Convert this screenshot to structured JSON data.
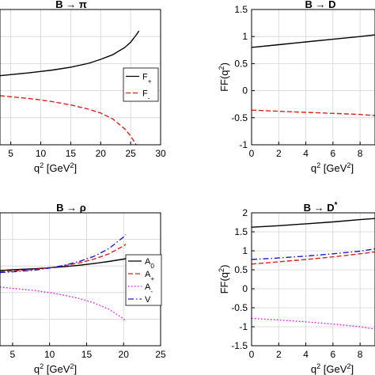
{
  "chart_data": [
    {
      "id": "b-pi",
      "type": "line",
      "title": "B → π",
      "xlabel": "q² [GeV²]",
      "ylabel": "",
      "xlim": [
        3.2,
        30
      ],
      "ylim": [
        -1.9,
        1.9
      ],
      "xticks": [
        5,
        10,
        15,
        20,
        25,
        30
      ],
      "xtick_labels": [
        "5",
        "10",
        "15",
        "20",
        "25",
        "30"
      ],
      "yticks": [],
      "grid": true,
      "legend": "center-right",
      "series": [
        {
          "name": "F₊",
          "color": "#000000",
          "dash": "solid",
          "x": [
            3.2,
            5,
            8,
            10,
            12,
            15,
            18,
            20,
            22,
            24,
            25,
            26,
            26.4
          ],
          "y": [
            0.04,
            0.07,
            0.12,
            0.16,
            0.2,
            0.28,
            0.39,
            0.5,
            0.63,
            0.83,
            0.98,
            1.2,
            1.3
          ]
        },
        {
          "name": "F₋",
          "color": "#e0201b",
          "dash": "dashed",
          "x": [
            3.2,
            5,
            8,
            10,
            12,
            15,
            18,
            20,
            22,
            24,
            25,
            26,
            26.4
          ],
          "y": [
            -0.52,
            -0.55,
            -0.6,
            -0.64,
            -0.69,
            -0.78,
            -0.9,
            -1.01,
            -1.17,
            -1.45,
            -1.65,
            -1.92,
            -2.05
          ]
        }
      ]
    },
    {
      "id": "b-d",
      "type": "line",
      "title": "B → D",
      "xlabel": "q² [GeV²]",
      "ylabel": "FF(q²)",
      "xlim": [
        0,
        9.1
      ],
      "ylim": [
        -1,
        1.5
      ],
      "xticks": [
        0,
        2,
        4,
        6,
        8
      ],
      "xtick_labels": [
        "0",
        "2",
        "4",
        "6",
        "8"
      ],
      "yticks": [
        -1,
        -0.5,
        0,
        0.5,
        1,
        1.5
      ],
      "ytick_labels": [
        "-1",
        "-0.5",
        "0",
        "0.5",
        "1",
        "1.5"
      ],
      "grid": true,
      "series": [
        {
          "name": "",
          "color": "#000000",
          "dash": "solid",
          "x": [
            0,
            2,
            4,
            6,
            8,
            9.1
          ],
          "y": [
            0.8,
            0.85,
            0.9,
            0.95,
            1.0,
            1.03
          ]
        },
        {
          "name": "",
          "color": "#e0201b",
          "dash": "dashed",
          "x": [
            0,
            2,
            4,
            6,
            8,
            9.1
          ],
          "y": [
            -0.36,
            -0.38,
            -0.4,
            -0.42,
            -0.44,
            -0.46
          ]
        }
      ]
    },
    {
      "id": "b-rho",
      "type": "line",
      "title": "B → ρ",
      "xlabel": "q² [GeV²]",
      "ylabel": "",
      "xlim": [
        3.3,
        25
      ],
      "ylim": [
        -1.9,
        1.95
      ],
      "xticks": [
        5,
        10,
        15,
        20,
        25
      ],
      "xtick_labels": [
        "5",
        "10",
        "15",
        "20",
        "25"
      ],
      "yticks": [],
      "grid": true,
      "legend": "right",
      "series": [
        {
          "name": "A₀",
          "color": "#000000",
          "dash": "solid",
          "x": [
            3.3,
            5,
            8,
            10,
            12,
            14,
            16,
            18,
            20,
            20.3
          ],
          "y": [
            0.28,
            0.3,
            0.33,
            0.36,
            0.39,
            0.43,
            0.48,
            0.54,
            0.61,
            0.62
          ]
        },
        {
          "name": "A₊",
          "color": "#e0201b",
          "dash": "dashed",
          "x": [
            3.3,
            5,
            8,
            10,
            12,
            14,
            16,
            18,
            20,
            20.3
          ],
          "y": [
            0.24,
            0.26,
            0.31,
            0.36,
            0.42,
            0.5,
            0.61,
            0.76,
            0.99,
            1.04
          ]
        },
        {
          "name": "A₋",
          "color": "#ff00ff",
          "dash": "dotted",
          "x": [
            3.3,
            5,
            8,
            10,
            12,
            14,
            16,
            18,
            20,
            20.3
          ],
          "y": [
            -0.2,
            -0.24,
            -0.3,
            -0.36,
            -0.44,
            -0.53,
            -0.66,
            -0.84,
            -1.12,
            -1.2
          ]
        },
        {
          "name": "V",
          "color": "#1a1ad6",
          "dash": "dashdot",
          "x": [
            3.3,
            5,
            8,
            10,
            12,
            14,
            16,
            18,
            20,
            20.3
          ],
          "y": [
            0.22,
            0.24,
            0.29,
            0.35,
            0.43,
            0.54,
            0.69,
            0.91,
            1.25,
            1.32
          ]
        }
      ]
    },
    {
      "id": "b-dstar",
      "type": "line",
      "title": "B → D*",
      "xlabel": "q² [GeV²]",
      "ylabel": "FF(q²)",
      "xlim": [
        0,
        9.1
      ],
      "ylim": [
        -1.5,
        2
      ],
      "xticks": [
        0,
        2,
        4,
        6,
        8
      ],
      "xtick_labels": [
        "0",
        "2",
        "4",
        "6",
        "8"
      ],
      "yticks": [
        -1.5,
        -1,
        -0.5,
        0,
        0.5,
        1,
        1.5,
        2
      ],
      "ytick_labels": [
        "-1.5",
        "-1",
        "-0.5",
        "0",
        "0.5",
        "1",
        "1.5",
        "2"
      ],
      "grid": true,
      "series": [
        {
          "name": "",
          "color": "#000000",
          "dash": "solid",
          "x": [
            0,
            2,
            4,
            6,
            8,
            9.1
          ],
          "y": [
            1.62,
            1.66,
            1.71,
            1.76,
            1.82,
            1.85
          ]
        },
        {
          "name": "",
          "color": "#e0201b",
          "dash": "dashed",
          "x": [
            0,
            2,
            4,
            6,
            8,
            9.1
          ],
          "y": [
            0.65,
            0.71,
            0.77,
            0.84,
            0.92,
            0.97
          ]
        },
        {
          "name": "",
          "color": "#1a1ad6",
          "dash": "dashdot",
          "x": [
            0,
            2,
            4,
            6,
            8,
            9.1
          ],
          "y": [
            0.77,
            0.81,
            0.86,
            0.92,
            0.99,
            1.05
          ]
        },
        {
          "name": "",
          "color": "#ff00ff",
          "dash": "dotted",
          "x": [
            0,
            2,
            4,
            6,
            8,
            9.1
          ],
          "y": [
            -0.78,
            -0.82,
            -0.87,
            -0.93,
            -1.0,
            -1.06
          ]
        }
      ]
    }
  ]
}
